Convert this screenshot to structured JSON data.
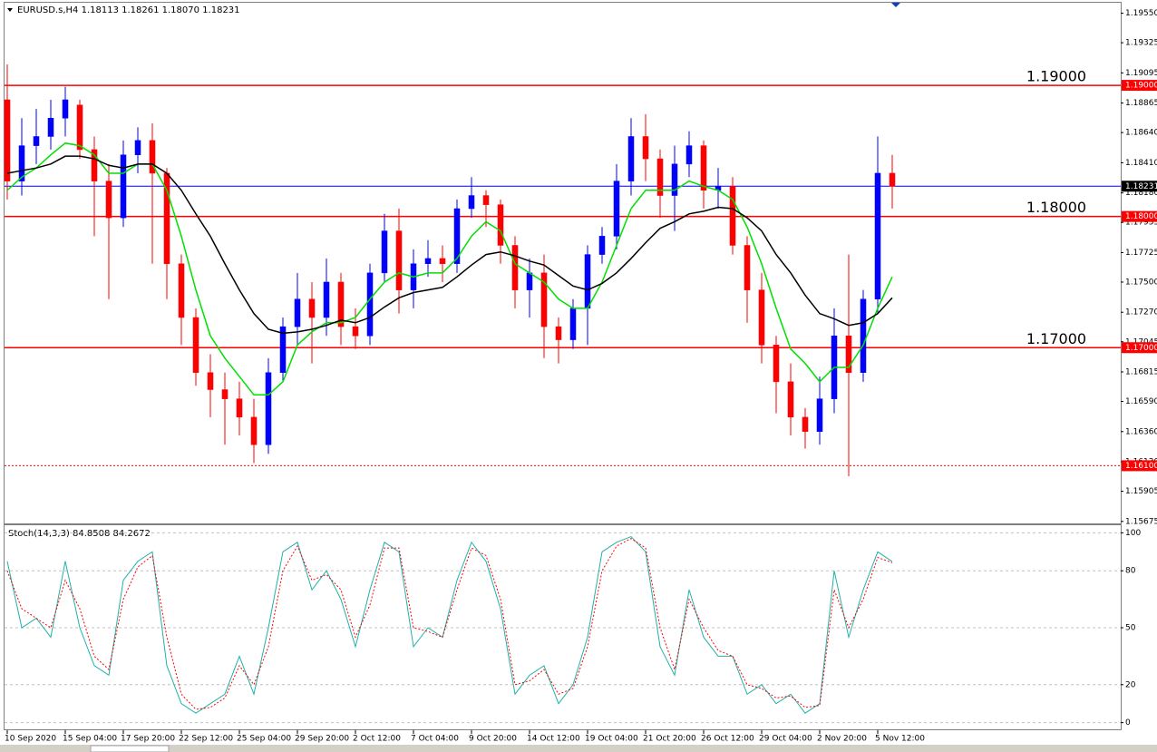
{
  "chart_data": [
    {
      "type": "candlestick",
      "title": "EURUSD.s,H4 1.18113 1.18261 1.18070 1.18231",
      "categories": [
        "10 Sep 2020",
        null,
        null,
        null,
        "15 Sep 04:00",
        null,
        null,
        null,
        "17 Sep 20:00",
        null,
        null,
        null,
        "22 Sep 12:00",
        null,
        null,
        null,
        "25 Sep 04:00",
        null,
        null,
        null,
        "29 Sep 20:00",
        null,
        null,
        null,
        "2 Oct 12:00",
        null,
        null,
        null,
        "7 Oct 04:00",
        null,
        null,
        null,
        "9 Oct 20:00",
        null,
        null,
        null,
        "14 Oct 12:00",
        null,
        null,
        null,
        "19 Oct 04:00",
        null,
        null,
        null,
        "21 Oct 20:00",
        null,
        null,
        null,
        "26 Oct 12:00",
        null,
        null,
        null,
        "29 Oct 04:00",
        null,
        null,
        null,
        "2 Nov 20:00",
        null,
        null,
        null,
        "5 Nov 12:00",
        null
      ],
      "open": [
        1.1889,
        1.1827,
        1.1854,
        1.1861,
        1.1875,
        1.1885,
        1.1851,
        1.1827,
        1.1799,
        1.1847,
        1.1858,
        1.1833,
        1.1764,
        1.1723,
        1.1681,
        1.1668,
        1.1661,
        1.1647,
        1.1626,
        1.1681,
        1.1716,
        1.1737,
        1.1723,
        1.175,
        1.1716,
        1.1709,
        1.1757,
        1.1789,
        1.1744,
        1.1764,
        1.1768,
        1.1764,
        1.1806,
        1.1816,
        1.1809,
        1.1778,
        1.1744,
        1.1757,
        1.1716,
        1.1706,
        1.173,
        1.1771,
        1.1785,
        1.1827,
        1.1861,
        1.1844,
        1.1816,
        1.184,
        1.1854,
        1.182,
        1.1823,
        1.1778,
        1.1744,
        1.1702,
        1.1674,
        1.1647,
        1.1636,
        1.1661,
        1.1709,
        1.1681,
        1.1737,
        1.1833
      ],
      "high": [
        1.1916,
        1.1875,
        1.1882,
        1.1889,
        1.1899,
        1.1889,
        1.1861,
        1.184,
        1.1858,
        1.1868,
        1.1871,
        1.1837,
        1.1771,
        1.173,
        1.1695,
        1.1681,
        1.1674,
        1.1661,
        1.1692,
        1.1723,
        1.1757,
        1.175,
        1.1768,
        1.1757,
        1.173,
        1.1764,
        1.1802,
        1.1806,
        1.1775,
        1.1782,
        1.1778,
        1.1813,
        1.183,
        1.182,
        1.1813,
        1.1785,
        1.1768,
        1.1771,
        1.1723,
        1.1737,
        1.1778,
        1.1792,
        1.184,
        1.1875,
        1.1878,
        1.1851,
        1.1854,
        1.1865,
        1.1858,
        1.1837,
        1.183,
        1.1785,
        1.1757,
        1.1709,
        1.1688,
        1.1654,
        1.1678,
        1.173,
        1.1771,
        1.1744,
        1.1861,
        1.1847
      ],
      "low": [
        1.1813,
        1.1816,
        1.184,
        1.1851,
        1.1861,
        1.1844,
        1.1785,
        1.1737,
        1.1792,
        1.1833,
        1.1764,
        1.1737,
        1.1702,
        1.1671,
        1.1647,
        1.1626,
        1.1633,
        1.1612,
        1.1619,
        1.1674,
        1.1702,
        1.1688,
        1.1709,
        1.1702,
        1.1699,
        1.1702,
        1.175,
        1.1726,
        1.173,
        1.1754,
        1.175,
        1.1757,
        1.1799,
        1.1792,
        1.1764,
        1.173,
        1.1723,
        1.1692,
        1.1688,
        1.1699,
        1.1702,
        1.1764,
        1.1775,
        1.1816,
        1.1827,
        1.1799,
        1.1789,
        1.183,
        1.1806,
        1.1806,
        1.1771,
        1.1719,
        1.1688,
        1.165,
        1.1633,
        1.1623,
        1.1626,
        1.165,
        1.1602,
        1.1674,
        1.1726,
        1.1806
      ],
      "close": [
        1.1827,
        1.1854,
        1.1861,
        1.1875,
        1.1889,
        1.1851,
        1.1827,
        1.1799,
        1.1847,
        1.1858,
        1.1833,
        1.1764,
        1.1723,
        1.1681,
        1.1668,
        1.1661,
        1.1647,
        1.1626,
        1.1681,
        1.1716,
        1.1737,
        1.1723,
        1.175,
        1.1716,
        1.1709,
        1.1757,
        1.1789,
        1.1744,
        1.1764,
        1.1768,
        1.1764,
        1.1806,
        1.1816,
        1.1809,
        1.1778,
        1.1744,
        1.1757,
        1.1716,
        1.1706,
        1.173,
        1.1771,
        1.1785,
        1.1827,
        1.1861,
        1.1844,
        1.1816,
        1.184,
        1.1854,
        1.182,
        1.1823,
        1.1778,
        1.1744,
        1.1702,
        1.1674,
        1.1647,
        1.1636,
        1.1661,
        1.1709,
        1.1681,
        1.1737,
        1.1833,
        1.18231
      ],
      "up_color": "#0000ff",
      "down_color": "#ff0000",
      "series": [
        {
          "color": "#00e000",
          "values": [
            1.182,
            1.183,
            1.1837,
            1.1847,
            1.1856,
            1.1854,
            1.1847,
            1.1833,
            1.1833,
            1.184,
            1.184,
            1.182,
            1.1785,
            1.1744,
            1.1709,
            1.1692,
            1.1678,
            1.1664,
            1.1664,
            1.1674,
            1.1702,
            1.1712,
            1.1719,
            1.1719,
            1.1723,
            1.1737,
            1.175,
            1.1757,
            1.1754,
            1.1757,
            1.1757,
            1.1768,
            1.1785,
            1.1796,
            1.1789,
            1.1764,
            1.1757,
            1.175,
            1.1737,
            1.173,
            1.173,
            1.175,
            1.1778,
            1.1806,
            1.182,
            1.182,
            1.182,
            1.1827,
            1.1823,
            1.182,
            1.1813,
            1.1792,
            1.1764,
            1.173,
            1.1699,
            1.1688,
            1.1674,
            1.1685,
            1.1685,
            1.1702,
            1.173,
            1.1754
          ]
        },
        {
          "color": "#000000",
          "values": [
            1.1833,
            1.1835,
            1.1837,
            1.184,
            1.1846,
            1.1846,
            1.1844,
            1.1839,
            1.1837,
            1.184,
            1.184,
            1.1833,
            1.182,
            1.1802,
            1.1785,
            1.1764,
            1.1744,
            1.1726,
            1.1714,
            1.1711,
            1.1712,
            1.1714,
            1.1717,
            1.1721,
            1.1719,
            1.1723,
            1.1731,
            1.1738,
            1.1742,
            1.1744,
            1.1746,
            1.1754,
            1.1763,
            1.1771,
            1.1773,
            1.177,
            1.1766,
            1.1763,
            1.1755,
            1.1747,
            1.1744,
            1.1749,
            1.1757,
            1.1768,
            1.178,
            1.1791,
            1.1796,
            1.1802,
            1.1804,
            1.1807,
            1.1806,
            1.1799,
            1.1789,
            1.1771,
            1.1757,
            1.174,
            1.1726,
            1.1722,
            1.1717,
            1.1719,
            1.1726,
            1.1738
          ]
        }
      ],
      "levels": [
        {
          "value": 1.19,
          "label": "1.19000",
          "color": "#ff0000",
          "dashed": false,
          "chart_label": true
        },
        {
          "value": 1.18,
          "label": "1.18000",
          "color": "#ff0000",
          "dashed": false,
          "chart_label": true
        },
        {
          "value": 1.17,
          "label": "1.17000",
          "color": "#ff0000",
          "dashed": false,
          "chart_label": true
        },
        {
          "value": 1.161,
          "label": "1.16100",
          "color": "#ff0000",
          "dashed": true,
          "chart_label": false
        }
      ],
      "last": {
        "value": 1.18231,
        "label": "1.18231",
        "color": "#0000ff"
      },
      "ylim": [
        1.1566,
        1.1963
      ],
      "yticks": [
        {
          "value": 1.1955,
          "label": "1.19550"
        },
        {
          "value": 1.19325,
          "label": "1.19325"
        },
        {
          "value": 1.19095,
          "label": "1.19095"
        },
        {
          "value": 1.18865,
          "label": "1.18865"
        },
        {
          "value": 1.1864,
          "label": "1.18640"
        },
        {
          "value": 1.1841,
          "label": "1.18410"
        },
        {
          "value": 1.1818,
          "label": "1.18180"
        },
        {
          "value": 1.17955,
          "label": "1.17955"
        },
        {
          "value": 1.17725,
          "label": "1.17725"
        },
        {
          "value": 1.175,
          "label": "1.17500"
        },
        {
          "value": 1.1727,
          "label": "1.17270"
        },
        {
          "value": 1.17045,
          "label": "1.17045"
        },
        {
          "value": 1.16815,
          "label": "1.16815"
        },
        {
          "value": 1.1659,
          "label": "1.16590"
        },
        {
          "value": 1.1636,
          "label": "1.16360"
        },
        {
          "value": 1.1613,
          "label": "1.16130"
        },
        {
          "value": 1.15905,
          "label": "1.15905"
        },
        {
          "value": 1.15675,
          "label": "1.15675"
        }
      ],
      "grid": false
    },
    {
      "type": "line",
      "title": "Stoch(14,3,3) 84.8508 84.2672",
      "series": [
        {
          "color": "#20b2aa",
          "dashed": false,
          "values": [
            85,
            50,
            55,
            45,
            85,
            50,
            30,
            25,
            75,
            85,
            90,
            30,
            10,
            5,
            10,
            15,
            35,
            15,
            50,
            90,
            95,
            70,
            80,
            65,
            40,
            70,
            95,
            90,
            40,
            50,
            45,
            75,
            95,
            85,
            60,
            15,
            25,
            30,
            10,
            20,
            45,
            90,
            95,
            98,
            90,
            40,
            25,
            70,
            45,
            35,
            35,
            15,
            20,
            10,
            15,
            5,
            10,
            80,
            45,
            70,
            90,
            84.8508
          ]
        },
        {
          "color": "#ff0000",
          "dashed": true,
          "values": [
            80,
            60,
            55,
            50,
            75,
            60,
            35,
            28,
            65,
            82,
            88,
            45,
            15,
            7,
            8,
            13,
            30,
            20,
            40,
            80,
            93,
            75,
            78,
            70,
            45,
            62,
            92,
            92,
            50,
            48,
            45,
            70,
            92,
            88,
            65,
            20,
            22,
            28,
            15,
            18,
            40,
            80,
            93,
            97,
            92,
            50,
            28,
            65,
            50,
            38,
            35,
            20,
            18,
            13,
            14,
            8,
            9,
            70,
            50,
            65,
            87,
            84.2672
          ]
        }
      ],
      "ylim": [
        -4,
        104
      ],
      "yticks": [
        0,
        20,
        50,
        80,
        100
      ],
      "grid": true
    }
  ]
}
